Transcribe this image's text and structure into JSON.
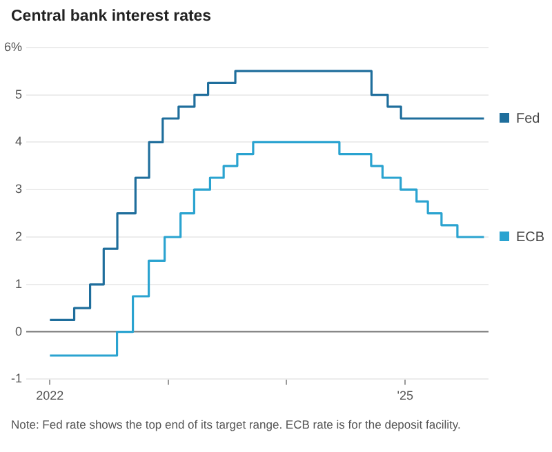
{
  "chart_data": {
    "type": "step",
    "title": "Central bank interest rates",
    "series": [
      {
        "name": "Fed",
        "color": "#1f6e9c",
        "x": [
          "2022-01-01",
          "2022-03-17",
          "2022-05-05",
          "2022-06-16",
          "2022-07-28",
          "2022-09-22",
          "2022-11-03",
          "2022-12-15",
          "2023-02-02",
          "2023-03-23",
          "2023-05-04",
          "2023-07-27",
          "2024-09-19",
          "2024-11-08",
          "2024-12-19",
          "2025-09-01"
        ],
        "values": [
          0.25,
          0.5,
          1.0,
          1.75,
          2.5,
          3.25,
          4.0,
          4.5,
          4.75,
          5.0,
          5.25,
          5.5,
          5.0,
          4.75,
          4.5,
          4.5
        ]
      },
      {
        "name": "ECB",
        "color": "#2aa3d0",
        "x": [
          "2022-01-01",
          "2022-07-27",
          "2022-09-14",
          "2022-11-02",
          "2022-12-21",
          "2023-02-08",
          "2023-03-22",
          "2023-05-10",
          "2023-06-21",
          "2023-08-02",
          "2023-09-20",
          "2024-06-12",
          "2024-09-18",
          "2024-10-23",
          "2024-12-18",
          "2025-02-05",
          "2025-03-12",
          "2025-04-23",
          "2025-06-11",
          "2025-09-01"
        ],
        "values": [
          -0.5,
          0.0,
          0.75,
          1.5,
          2.0,
          2.5,
          3.0,
          3.25,
          3.5,
          3.75,
          4.0,
          3.75,
          3.5,
          3.25,
          3.0,
          2.75,
          2.5,
          2.25,
          2.0,
          2.0
        ]
      }
    ],
    "xlim": [
      "2021-10-20",
      "2025-09-15"
    ],
    "xticks": [
      {
        "value": "2022-01-01",
        "label": "2022"
      },
      {
        "value": "2023-01-01",
        "label": null
      },
      {
        "value": "2024-01-01",
        "label": null
      },
      {
        "value": "2025-01-01",
        "label": "'25"
      }
    ],
    "ylim": [
      -1,
      6
    ],
    "yticks": [
      -1,
      0,
      1,
      2,
      3,
      4,
      5,
      {
        "value": 6,
        "label": "6%"
      }
    ],
    "grid": "y",
    "legend": "right",
    "annotations": [
      "Note: Fed rate shows the top end of its target range. ECB rate is for the deposit facility."
    ]
  }
}
